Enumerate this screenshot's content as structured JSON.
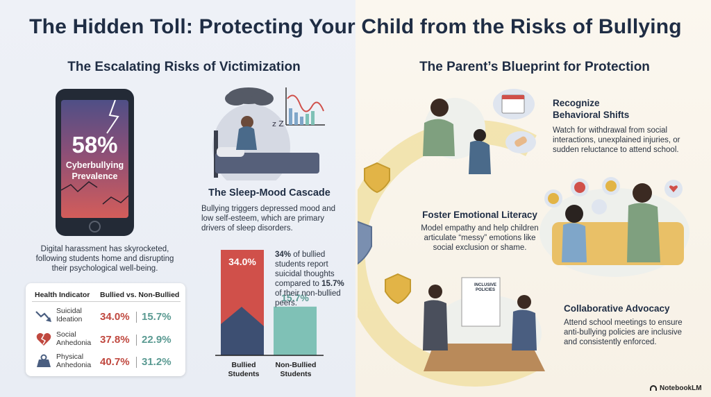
{
  "title": "The Hidden Toll: Protecting Your Child from the Risks of Bullying",
  "left": {
    "heading": "The Escalating Risks of Victimization",
    "phone": {
      "percent": "58%",
      "label": "Cyberbullying Prevalence"
    },
    "phone_caption": "Digital harassment has skyrocketed, following students home and disrupting their psychological well-being.",
    "sleep": {
      "heading": "The Sleep-Mood Cascade",
      "text": "Bullying triggers depressed mood and low self-esteem, which are primary drivers of sleep disorders."
    },
    "table": {
      "col1": "Health Indicator",
      "col2": "Bullied vs. Non-Bullied",
      "rows": [
        {
          "label": "Suicidal Ideation",
          "bullied": "34.0%",
          "non_bullied": "15.7%",
          "icon": "trend-down-icon"
        },
        {
          "label": "Social Anhedonia",
          "bullied": "37.8%",
          "non_bullied": "22.9%",
          "icon": "broken-heart-icon"
        },
        {
          "label": "Physical Anhedonia",
          "bullied": "40.7%",
          "non_bullied": "31.2%",
          "icon": "weight-icon"
        }
      ]
    },
    "stat": {
      "pct1": "34%",
      "text1": "of bullied students report suicidal thoughts compared to",
      "pct2": "15.7%",
      "text2": "of their non-bullied peers."
    }
  },
  "chart_data": {
    "type": "bar",
    "categories": [
      "Bullied Students",
      "Non-Bullied Students"
    ],
    "values": [
      34.0,
      15.7
    ],
    "value_labels": [
      "34.0%",
      "15.7%"
    ],
    "colors": [
      "#d0504a",
      "#7fc1b6"
    ],
    "ylim": [
      0,
      34.0
    ]
  },
  "right": {
    "heading": "The Parent’s Blueprint for Protection",
    "items": [
      {
        "title": "Recognize Behavioral Shifts",
        "text": "Watch for withdrawal from social interactions, unexplained injuries, or sudden reluctance to attend school."
      },
      {
        "title": "Foster Emotional Literacy",
        "text": "Model empathy and help children articulate “messy” emotions like social exclusion or shame."
      },
      {
        "title": "Collaborative Advocacy",
        "text": "Attend school meetings to ensure anti-bullying policies are inclusive and consistently enforced."
      }
    ],
    "doc_label": "INCLUSIVE POLICIES"
  },
  "brand": "NotebookLM"
}
